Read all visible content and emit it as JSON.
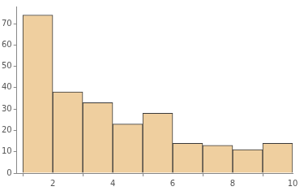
{
  "chart_data": {
    "type": "histogram",
    "bins": [
      1,
      2,
      3,
      4,
      5,
      6,
      7,
      8,
      9,
      10
    ],
    "values": [
      74,
      38,
      33,
      23,
      28,
      14,
      13,
      11,
      14
    ],
    "color": "#efcf9f",
    "xlim": [
      0.8,
      10
    ],
    "xticks": [
      2,
      4,
      6,
      8,
      10
    ],
    "ylim": [
      0,
      78
    ],
    "yticks": [
      0,
      10,
      20,
      30,
      40,
      50,
      60,
      70
    ],
    "grid": false
  }
}
